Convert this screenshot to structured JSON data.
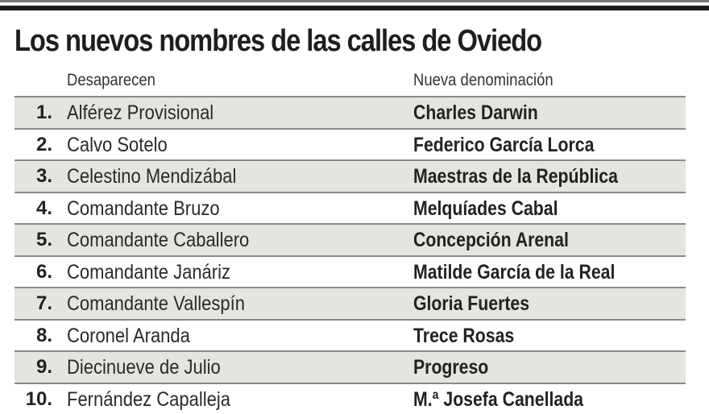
{
  "title": "Los nuevos nombres de las calles de Oviedo",
  "headers": {
    "old": "Desaparecen",
    "new": "Nueva denominación"
  },
  "rows": [
    {
      "num": "1.",
      "old": "Alférez Provisional",
      "new": "Charles Darwin"
    },
    {
      "num": "2.",
      "old": "Calvo Sotelo",
      "new": "Federico García Lorca"
    },
    {
      "num": "3.",
      "old": "Celestino Mendizábal",
      "new": "Maestras de la República"
    },
    {
      "num": "4.",
      "old": "Comandante Bruzo",
      "new": "Melquíades Cabal"
    },
    {
      "num": "5.",
      "old": "Comandante Caballero",
      "new": "Concepción Arenal"
    },
    {
      "num": "6.",
      "old": "Comandante Janáriz",
      "new": "Matilde García de la Real"
    },
    {
      "num": "7.",
      "old": "Comandante Vallespín",
      "new": "Gloria Fuertes"
    },
    {
      "num": "8.",
      "old": "Coronel Aranda",
      "new": "Trece Rosas"
    },
    {
      "num": "9.",
      "old": "Diecinueve de Julio",
      "new": "Progreso"
    },
    {
      "num": "10.",
      "old": "Fernández Capalleja",
      "new": "M.ª Josefa Canellada"
    }
  ],
  "colors": {
    "shade": "#e4e4e0",
    "rule": "#8a8a8a",
    "topbar": "#1c1c1c"
  }
}
